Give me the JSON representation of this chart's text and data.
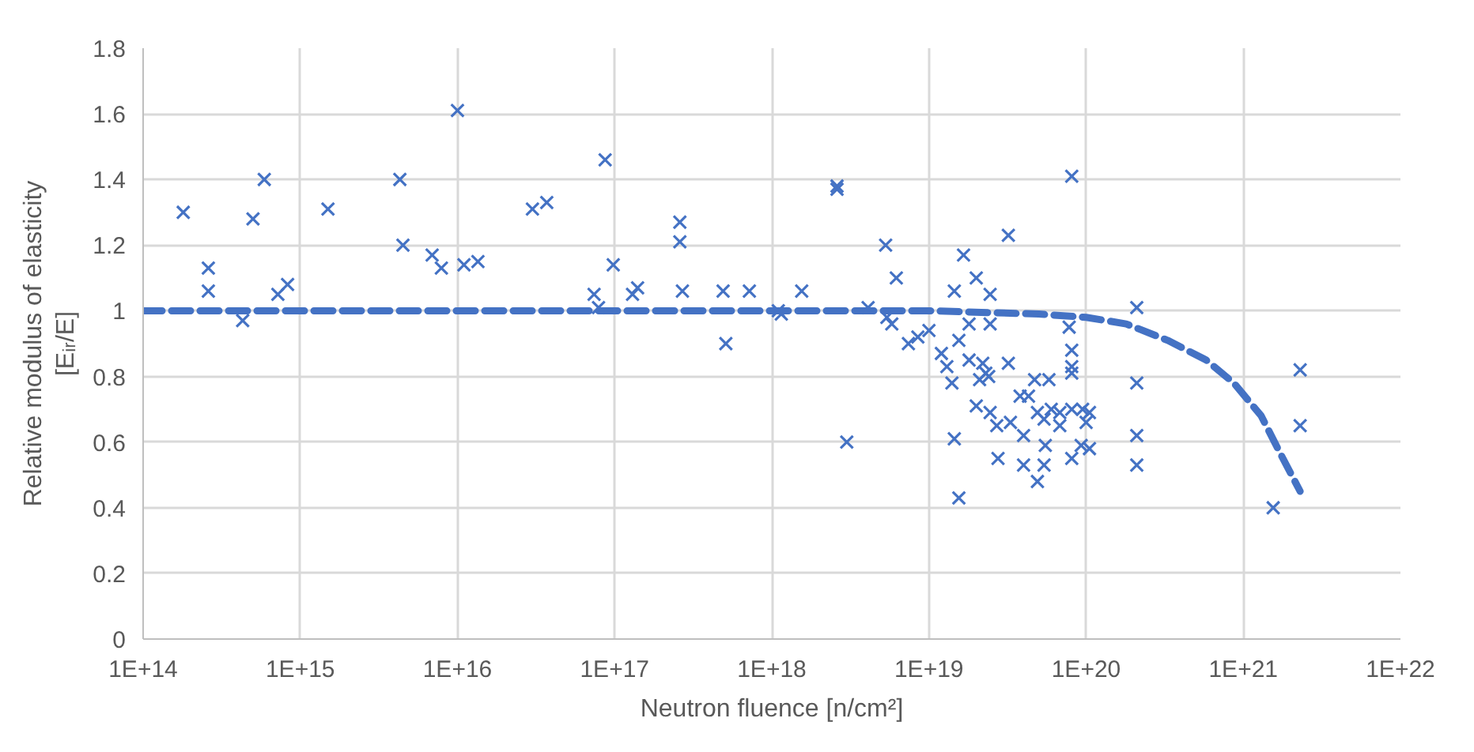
{
  "chart_data": {
    "type": "scatter",
    "xlabel": "Neutron fluence [n/cm²]",
    "ylabel": "Relative modulus of elasticity\n[Eᵢᵣ/E]",
    "log": "x",
    "grid": true,
    "xlim": [
      100000000000000.0,
      1e+22
    ],
    "ylim": [
      0,
      1.8
    ],
    "xticks": [
      {
        "value": 100000000000000.0,
        "label": "1E+14"
      },
      {
        "value": 1000000000000000.0,
        "label": "1E+15"
      },
      {
        "value": 1e+16,
        "label": "1E+16"
      },
      {
        "value": 1e+17,
        "label": "1E+17"
      },
      {
        "value": 1e+18,
        "label": "1E+18"
      },
      {
        "value": 1e+19,
        "label": "1E+19"
      },
      {
        "value": 1e+20,
        "label": "1E+20"
      },
      {
        "value": 1e+21,
        "label": "1E+21"
      },
      {
        "value": 1e+22,
        "label": "1E+22"
      }
    ],
    "yticks": [
      0,
      0.2,
      0.4,
      0.6,
      0.8,
      1,
      1.2,
      1.4,
      1.6,
      1.8
    ],
    "series": [
      {
        "marker": "cross",
        "color": "#4472c4",
        "x": [
          180000000000000.0,
          260000000000000.0,
          260000000000000.0,
          430000000000000.0,
          500000000000000.0,
          590000000000000.0,
          720000000000000.0,
          830000000000000.0,
          1500000000000000.0,
          4300000000000000.0,
          4500000000000000.0,
          6900000000000000.0,
          7900000000000000.0,
          1e+16,
          1.1e+16,
          1.35e+16,
          3e+16,
          3.7e+16,
          8.7e+16,
          7.4e+16,
          7.9e+16,
          9.8e+16,
          1.4e+17,
          1.3e+17,
          2.6e+17,
          2.6e+17,
          2.7e+17,
          4.9e+17,
          5.1e+17,
          7.2e+17,
          1.15e+18,
          1.1e+18,
          1.55e+18,
          2.6e+18,
          2.6e+18,
          3e+18,
          4.1e+18,
          5.3e+18,
          6.2e+18,
          5.4e+18,
          5.8e+18,
          7.4e+18,
          8.5e+18,
          1e+19,
          1.2e+19,
          1.3e+19,
          1.4e+19,
          1.45e+19,
          1.55e+19,
          1.45e+19,
          1.66e+19,
          2e+19,
          2.45e+19,
          1.55e+19,
          1.8e+19,
          2.45e+19,
          1.8e+19,
          2.2e+19,
          2.3e+19,
          2.1e+19,
          2.4e+19,
          3.2e+19,
          3.2e+19,
          2e+19,
          2.45e+19,
          2.7e+19,
          2.75e+19,
          3.3e+19,
          3.8e+19,
          4.3e+19,
          4.7e+19,
          5.8e+19,
          4e+19,
          4e+19,
          4.9e+19,
          5.4e+19,
          4.9e+19,
          5.4e+19,
          6e+19,
          6.8e+19,
          5.5e+19,
          6.8e+19,
          8.1e+19,
          9.5e+19,
          1.05e+20,
          1e+20,
          8.1e+19,
          9.3e+19,
          1.05e+20,
          7.8e+19,
          8.1e+19,
          8.1e+19,
          8.1e+19,
          8.1e+19,
          2.1e+20,
          2.1e+20,
          2.1e+20,
          2.1e+20,
          2.3e+21,
          2.3e+21,
          1.55e+21
        ],
        "values": [
          1.3,
          1.13,
          1.06,
          0.97,
          1.28,
          1.4,
          1.05,
          1.08,
          1.31,
          1.4,
          1.2,
          1.17,
          1.13,
          1.61,
          1.14,
          1.15,
          1.31,
          1.33,
          1.46,
          1.05,
          1.01,
          1.14,
          1.07,
          1.05,
          1.27,
          1.21,
          1.06,
          1.06,
          0.9,
          1.06,
          0.99,
          1.0,
          1.06,
          1.38,
          1.37,
          0.6,
          1.01,
          1.2,
          1.1,
          0.98,
          0.96,
          0.9,
          0.92,
          0.94,
          0.87,
          0.83,
          0.78,
          0.61,
          0.43,
          1.06,
          1.17,
          1.1,
          1.05,
          0.91,
          0.96,
          0.96,
          0.85,
          0.84,
          0.81,
          0.79,
          0.8,
          0.84,
          1.23,
          0.71,
          0.69,
          0.65,
          0.55,
          0.66,
          0.74,
          0.74,
          0.79,
          0.79,
          0.62,
          0.53,
          0.48,
          0.53,
          0.69,
          0.67,
          0.7,
          0.65,
          0.59,
          0.69,
          0.7,
          0.7,
          0.69,
          0.66,
          0.55,
          0.59,
          0.58,
          0.95,
          0.88,
          0.83,
          0.81,
          1.41,
          1.01,
          0.78,
          0.62,
          0.53,
          0.82,
          0.65,
          0.4
        ]
      },
      {
        "type": "line",
        "line_style": "dashed",
        "marker": "none",
        "color": "#4472c4",
        "x": [
          100000000000000.0,
          1e+16,
          1e+18,
          1e+19,
          5e+19,
          1e+20,
          1.8e+20,
          3.3e+20,
          5.8e+20,
          8.7e+20,
          1.3e+21,
          1.7e+21,
          2.3e+21
        ],
        "values": [
          1.0,
          1.0,
          1.0,
          1.0,
          0.99,
          0.98,
          0.96,
          0.91,
          0.85,
          0.78,
          0.68,
          0.57,
          0.45
        ]
      }
    ]
  }
}
